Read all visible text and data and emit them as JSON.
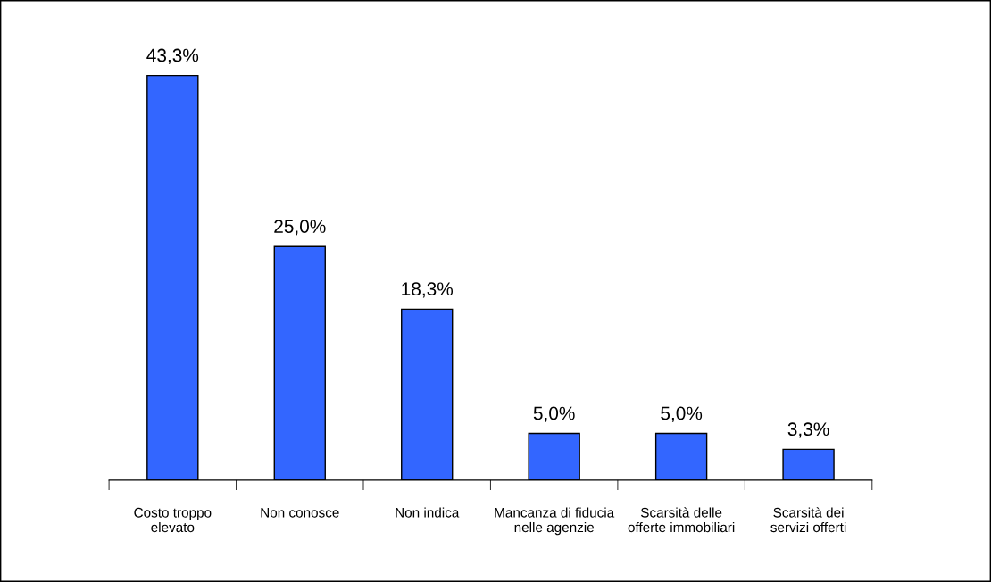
{
  "chart_data": {
    "type": "bar",
    "categories": [
      "Costo troppo elevato",
      "Non conosce",
      "Non indica",
      "Mancanza di fiducia nelle agenzie",
      "Scarsità delle offerte immobiliari",
      "Scarsità dei servizi offerti"
    ],
    "values": [
      43.3,
      25.0,
      18.3,
      5.0,
      5.0,
      3.3
    ],
    "value_labels": [
      "43,3%",
      "25,0%",
      "18,3%",
      "5,0%",
      "5,0%",
      "3,3%"
    ],
    "color": "#3366ff",
    "tick_labels": "x",
    "grid": false,
    "legend": false
  }
}
